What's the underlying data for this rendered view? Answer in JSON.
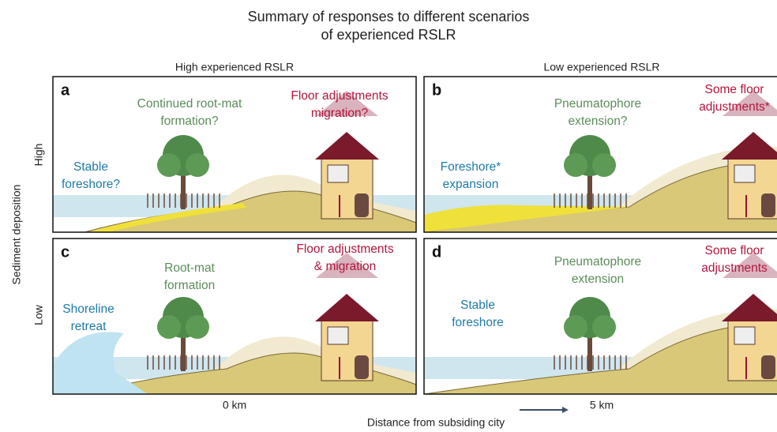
{
  "title": [
    "Summary of responses to different scenarios",
    "of experienced RSLR"
  ],
  "columns": [
    "High experienced RSLR",
    "Low experienced RSLR"
  ],
  "y_axis_label": "Sediment deposition",
  "rows": [
    "High",
    "Low"
  ],
  "x_axis_label": "Distance from subsiding city",
  "x_ticks": [
    "0 km",
    "5 km"
  ],
  "panels": [
    {
      "letter": "a",
      "labels": [
        {
          "lines": [
            "Continued root-mat",
            "formation?"
          ],
          "color": "#5b8c5a"
        },
        {
          "lines": [
            "Floor adjustments",
            "migration?"
          ],
          "color": "#b3163c"
        },
        {
          "lines": [
            "Stable",
            "foreshore?"
          ],
          "color": "#1f7aa8"
        }
      ]
    },
    {
      "letter": "b",
      "labels": [
        {
          "lines": [
            "Pneumatophore",
            "extension?"
          ],
          "color": "#5b8c5a"
        },
        {
          "lines": [
            "Some floor",
            "adjustments*"
          ],
          "color": "#b3163c"
        },
        {
          "lines": [
            "Foreshore*",
            "expansion"
          ],
          "color": "#1f7aa8"
        }
      ]
    },
    {
      "letter": "c",
      "labels": [
        {
          "lines": [
            "Root-mat",
            "formation"
          ],
          "color": "#5b8c5a"
        },
        {
          "lines": [
            "Floor adjustments",
            "& migration"
          ],
          "color": "#b3163c"
        },
        {
          "lines": [
            "Shoreline",
            "retreat"
          ],
          "color": "#1f7aa8"
        }
      ]
    },
    {
      "letter": "d",
      "labels": [
        {
          "lines": [
            "Pneumatophore",
            "extension"
          ],
          "color": "#5b8c5a"
        },
        {
          "lines": [
            "Some floor",
            "adjustments"
          ],
          "color": "#b3163c"
        },
        {
          "lines": [
            "Stable",
            "foreshore"
          ],
          "color": "#1f7aa8"
        }
      ]
    }
  ]
}
